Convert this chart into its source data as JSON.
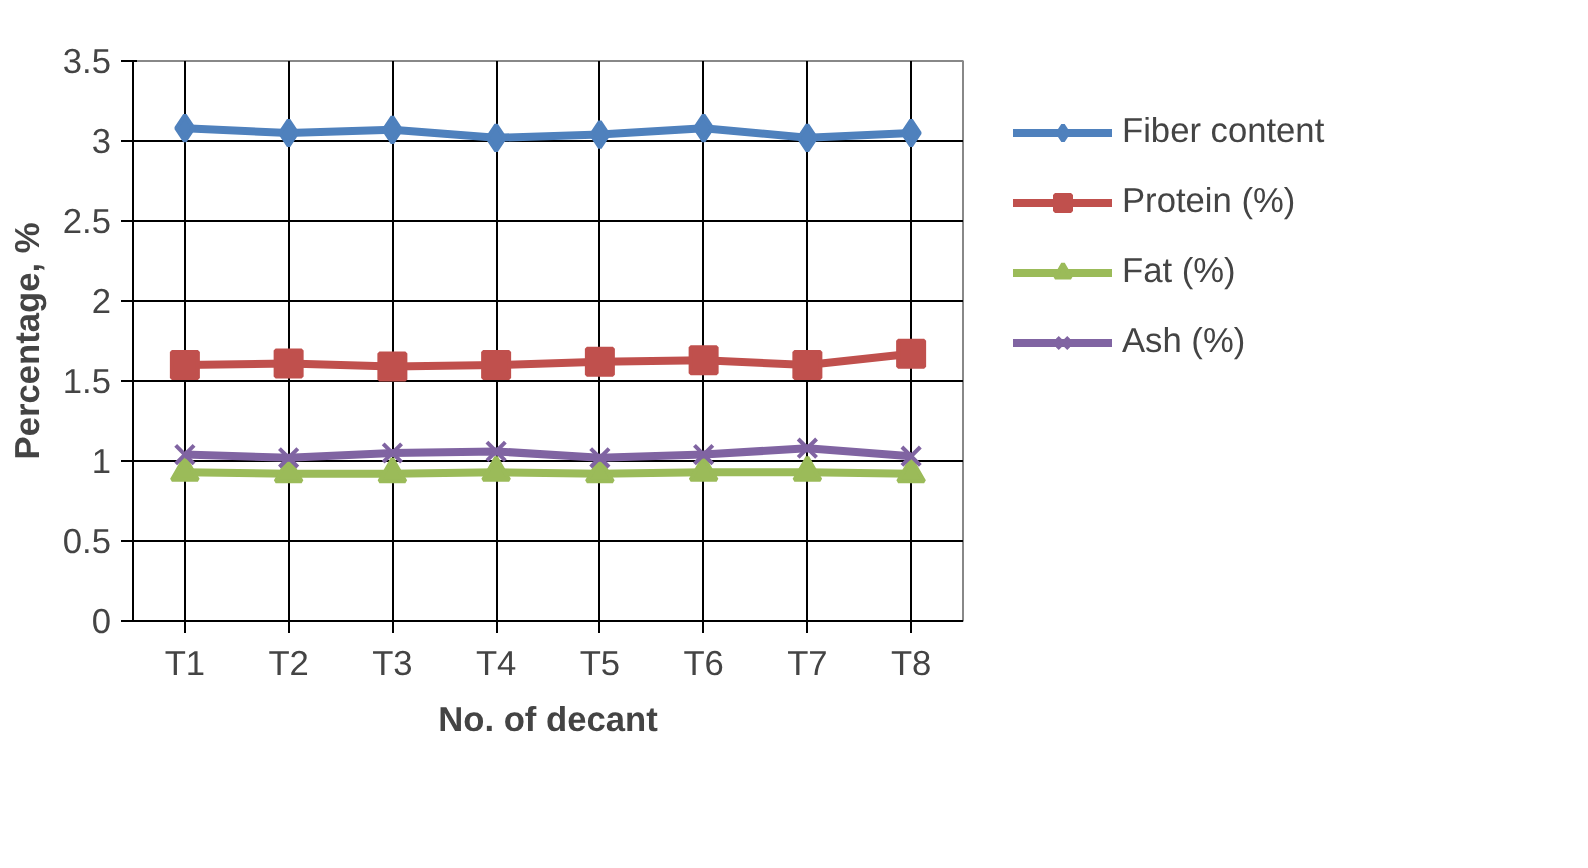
{
  "chart_data": {
    "type": "line",
    "xlabel": "No. of decant",
    "ylabel": "Percentage, %",
    "categories": [
      "T1",
      "T2",
      "T3",
      "T4",
      "T5",
      "T6",
      "T7",
      "T8"
    ],
    "series": [
      {
        "name": "Fiber content",
        "color": "#4f81bd",
        "marker": "diamond",
        "values": [
          3.08,
          3.05,
          3.07,
          3.02,
          3.04,
          3.08,
          3.02,
          3.05
        ]
      },
      {
        "name": "Protein (%)",
        "color": "#c0504d",
        "marker": "square",
        "values": [
          1.6,
          1.61,
          1.59,
          1.6,
          1.62,
          1.63,
          1.6,
          1.67
        ]
      },
      {
        "name": "Fat (%)",
        "color": "#9bbb59",
        "marker": "triangle",
        "values": [
          0.93,
          0.92,
          0.92,
          0.93,
          0.92,
          0.93,
          0.93,
          0.92
        ]
      },
      {
        "name": "Ash (%)",
        "color": "#8064a2",
        "marker": "cross",
        "values": [
          1.04,
          1.02,
          1.05,
          1.06,
          1.02,
          1.04,
          1.08,
          1.03
        ]
      }
    ],
    "ylim": [
      0,
      3.5
    ],
    "yticks": [
      0,
      0.5,
      1,
      1.5,
      2,
      2.5,
      3,
      3.5
    ],
    "grid": true,
    "legend": "right",
    "line_style": "solid"
  }
}
